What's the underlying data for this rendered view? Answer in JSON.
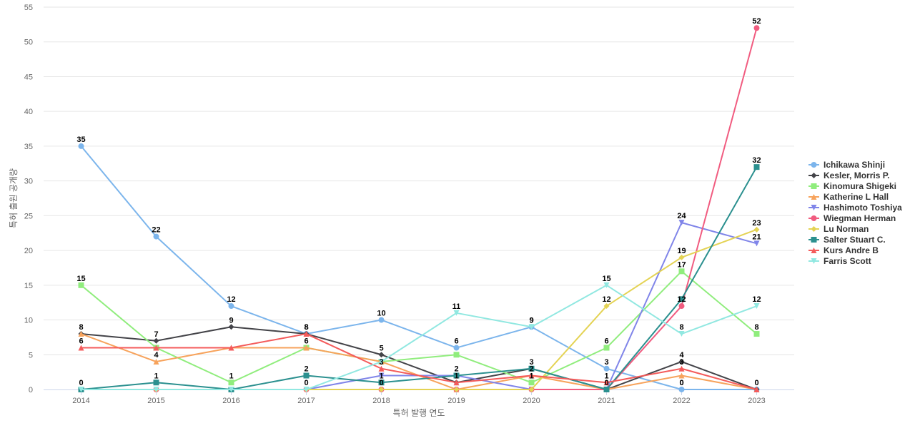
{
  "chart_data": {
    "type": "line",
    "title": "",
    "xlabel": "특허 발행 연도",
    "ylabel": "특허 출원 공개량",
    "x": [
      "2014",
      "2015",
      "2016",
      "2017",
      "2018",
      "2019",
      "2020",
      "2021",
      "2022",
      "2023"
    ],
    "ylim": [
      0,
      55
    ],
    "yticks": [
      0,
      5,
      10,
      15,
      20,
      25,
      30,
      35,
      40,
      45,
      50,
      55
    ],
    "grid": "horizontal",
    "legend_position": "right",
    "series": [
      {
        "name": "Ichikawa Shinji",
        "color": "#7cb5ec",
        "marker": "circle",
        "values": [
          35,
          22,
          12,
          8,
          10,
          6,
          9,
          3,
          0,
          0
        ],
        "labels": [
          true,
          true,
          true,
          true,
          true,
          true,
          true,
          true,
          true,
          false
        ]
      },
      {
        "name": "Kesler, Morris P.",
        "color": "#434348",
        "marker": "diamond",
        "values": [
          8,
          7,
          9,
          8,
          5,
          1,
          3,
          0,
          4,
          0
        ],
        "labels": [
          true,
          true,
          true,
          true,
          true,
          false,
          false,
          false,
          true,
          true
        ]
      },
      {
        "name": "Kinomura Shigeki",
        "color": "#90ed7d",
        "marker": "square",
        "values": [
          15,
          6,
          1,
          6,
          4,
          5,
          1,
          6,
          17,
          8
        ],
        "labels": [
          true,
          false,
          true,
          true,
          false,
          false,
          false,
          true,
          true,
          true
        ]
      },
      {
        "name": "Katherine L Hall",
        "color": "#f7a35c",
        "marker": "triangle",
        "values": [
          8,
          4,
          6,
          6,
          4,
          0,
          2,
          0,
          2,
          0
        ],
        "labels": [
          false,
          true,
          false,
          false,
          false,
          false,
          false,
          false,
          false,
          false
        ]
      },
      {
        "name": "Hashimoto Toshiya",
        "color": "#8085e9",
        "marker": "triangle-down",
        "values": [
          0,
          0,
          0,
          0,
          2,
          2,
          0,
          0,
          24,
          21
        ],
        "labels": [
          false,
          false,
          false,
          false,
          false,
          false,
          false,
          false,
          true,
          true
        ]
      },
      {
        "name": "Wiegman Herman",
        "color": "#f15c80",
        "marker": "circle",
        "values": [
          0,
          0,
          0,
          0,
          0,
          0,
          0,
          0,
          12,
          52
        ],
        "labels": [
          false,
          false,
          false,
          false,
          false,
          false,
          false,
          false,
          false,
          true
        ]
      },
      {
        "name": "Lu Norman",
        "color": "#e4d354",
        "marker": "diamond",
        "values": [
          0,
          0,
          0,
          0,
          0,
          0,
          0,
          12,
          19,
          23
        ],
        "labels": [
          false,
          false,
          false,
          false,
          false,
          false,
          false,
          true,
          true,
          true
        ]
      },
      {
        "name": "Salter Stuart C.",
        "color": "#2b908f",
        "marker": "square",
        "values": [
          0,
          1,
          0,
          2,
          1,
          2,
          3,
          0,
          13,
          32
        ],
        "labels": [
          true,
          true,
          false,
          true,
          true,
          true,
          true,
          false,
          false,
          true
        ]
      },
      {
        "name": "Kurs Andre B",
        "color": "#f45b5b",
        "marker": "triangle",
        "values": [
          6,
          6,
          6,
          8,
          3,
          1,
          2,
          1,
          3,
          0
        ],
        "labels": [
          true,
          false,
          false,
          false,
          true,
          false,
          true,
          true,
          true,
          false
        ]
      },
      {
        "name": "Farris Scott",
        "color": "#91e8e1",
        "marker": "triangle-down",
        "values": [
          0,
          0,
          0,
          0,
          4,
          11,
          9,
          15,
          8,
          12
        ],
        "labels": [
          false,
          false,
          false,
          false,
          false,
          true,
          true,
          true,
          true,
          true
        ]
      }
    ],
    "extra_labels": [
      {
        "x": "2017",
        "text": "0"
      },
      {
        "x": "2018",
        "text": "0"
      },
      {
        "x": "2019",
        "text": "1"
      },
      {
        "x": "2020",
        "text": "1"
      },
      {
        "x": "2021",
        "text": "0"
      },
      {
        "x": "2022",
        "text": "12"
      },
      {
        "x": "2022",
        "text": "0"
      }
    ]
  }
}
